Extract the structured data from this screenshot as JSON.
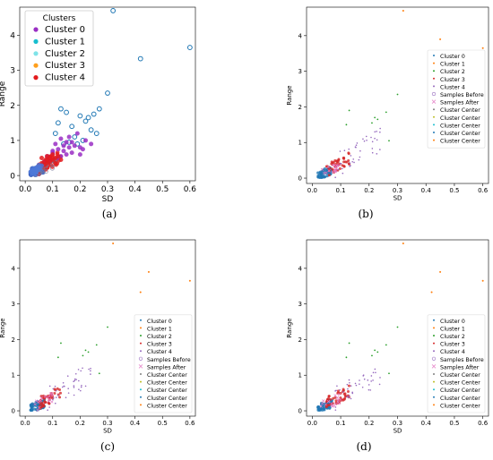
{
  "chart_data": [
    {
      "type": "scatter",
      "panel": "a",
      "caption": "(a)",
      "xlabel": "SD",
      "ylabel": "Range",
      "xlim": [
        -0.02,
        0.62
      ],
      "ylim": [
        -0.15,
        4.8
      ],
      "xticks": [
        "0.0",
        "0.1",
        "0.2",
        "0.3",
        "0.4",
        "0.5",
        "0.6"
      ],
      "yticks": [
        "0",
        "1",
        "2",
        "3",
        "4"
      ],
      "legend": {
        "title": "Clusters",
        "placement": "top-left",
        "entries": [
          "Cluster 0",
          "Cluster 1",
          "Cluster 2",
          "Cluster 3",
          "Cluster 4"
        ],
        "colors": [
          "#9a2ec4",
          "#17becf",
          "#7fe3e8",
          "#ff9f1c",
          "#e31a1c"
        ]
      },
      "series": [
        {
          "name": "Cluster 1",
          "color": "#1f77b4",
          "marker": "open-circle",
          "x": [
            0.32,
            0.42,
            0.6,
            0.3,
            0.27,
            0.25,
            0.23,
            0.2,
            0.22,
            0.17,
            0.13,
            0.12,
            0.15,
            0.18,
            0.24,
            0.26,
            0.21,
            0.16,
            0.14,
            0.19,
            0.11
          ],
          "y": [
            4.7,
            3.33,
            3.65,
            2.35,
            1.9,
            1.75,
            1.65,
            1.7,
            1.55,
            1.4,
            1.9,
            1.5,
            1.8,
            1.1,
            1.3,
            1.2,
            1.0,
            0.95,
            0.9,
            0.9,
            1.2
          ]
        },
        {
          "name": "Cluster 0",
          "color": "#9a2ec4",
          "marker": "dot",
          "x": [
            0.08,
            0.1,
            0.12,
            0.14,
            0.16,
            0.18,
            0.2,
            0.22,
            0.11,
            0.13,
            0.15,
            0.17,
            0.19,
            0.09,
            0.07,
            0.12,
            0.14,
            0.16,
            0.2,
            0.24,
            0.1,
            0.13,
            0.17,
            0.21,
            0.15
          ],
          "y": [
            0.55,
            0.65,
            0.75,
            0.7,
            0.8,
            0.85,
            0.8,
            1.0,
            0.9,
            1.05,
            0.6,
            0.95,
            1.2,
            0.45,
            0.4,
            0.5,
            0.85,
            1.1,
            0.6,
            0.9,
            0.7,
            0.55,
            0.65,
            0.75,
            0.95
          ]
        },
        {
          "name": "Cluster 4",
          "color": "#e31a1c",
          "marker": "dot",
          "x": [
            0.05,
            0.06,
            0.07,
            0.08,
            0.09,
            0.1,
            0.11,
            0.06,
            0.08,
            0.1,
            0.12,
            0.07,
            0.09,
            0.11,
            0.13,
            0.05,
            0.08,
            0.1
          ],
          "y": [
            0.3,
            0.35,
            0.4,
            0.45,
            0.5,
            0.45,
            0.5,
            0.5,
            0.55,
            0.6,
            0.55,
            0.3,
            0.4,
            0.35,
            0.45,
            0.25,
            0.35,
            0.5
          ]
        },
        {
          "name": "Cluster 2",
          "color": "#4c78d8",
          "marker": "dot",
          "x": [
            0.02,
            0.025,
            0.03,
            0.035,
            0.04,
            0.045,
            0.05,
            0.03,
            0.04,
            0.05,
            0.06,
            0.035,
            0.045,
            0.055
          ],
          "y": [
            0.1,
            0.15,
            0.12,
            0.2,
            0.18,
            0.25,
            0.22,
            0.05,
            0.08,
            0.3,
            0.28,
            0.1,
            0.15,
            0.2
          ]
        }
      ]
    },
    {
      "type": "scatter",
      "panel": "b",
      "caption": "(b)",
      "xlabel": "SD",
      "ylabel": "Range",
      "xticks": [
        "0.0",
        "0.1",
        "0.2",
        "0.3",
        "0.4",
        "0.5",
        "0.6"
      ],
      "yticks": [
        "0",
        "1",
        "2",
        "3",
        "4"
      ],
      "legend": {
        "placement": "right",
        "entries": [
          "Cluster 0",
          "Cluster 1",
          "Cluster 2",
          "Cluster 3",
          "Cluster 4",
          "Samples Before",
          "Samples After",
          "Cluster Center",
          "Cluster Center",
          "Cluster Center",
          "Cluster Center",
          "Cluster Center"
        ]
      }
    },
    {
      "type": "scatter",
      "panel": "c",
      "caption": "(c)",
      "xlabel": "SD",
      "ylabel": "Range",
      "xticks": [
        "0.0",
        "0.1",
        "0.2",
        "0.3",
        "0.4",
        "0.5",
        "0.6"
      ],
      "yticks": [
        "0",
        "1",
        "2",
        "3",
        "4"
      ],
      "legend": {
        "placement": "bottom-right",
        "entries": [
          "Cluster 0",
          "Cluster 1",
          "Cluster 2",
          "Cluster 3",
          "Cluster 4",
          "Samples Before",
          "Samples After",
          "Cluster Center",
          "Cluster Center",
          "Cluster Center",
          "Cluster Center",
          "Cluster Center"
        ]
      }
    },
    {
      "type": "scatter",
      "panel": "d",
      "caption": "(d)",
      "xlabel": "SD",
      "ylabel": "Range",
      "xticks": [
        "0.0",
        "0.1",
        "0.2",
        "0.3",
        "0.4",
        "0.5",
        "0.6"
      ],
      "yticks": [
        "0",
        "1",
        "2",
        "3",
        "4"
      ],
      "legend": {
        "placement": "bottom-right",
        "entries": [
          "Cluster 0",
          "Cluster 1",
          "Cluster 2",
          "Cluster 3",
          "Cluster 4",
          "Samples Before",
          "Samples After",
          "Cluster Center",
          "Cluster Center",
          "Cluster Center",
          "Cluster Center",
          "Cluster Center"
        ]
      }
    }
  ],
  "small_legend_colors": [
    "#1f77b4",
    "#ff7f0e",
    "#2ca02c",
    "#d62728",
    "#9467bd",
    "#9467bd",
    "#e377c2",
    "#7f7f7f",
    "#bcbd22",
    "#17becf",
    "#1f77b4",
    "#ff7f0e"
  ]
}
